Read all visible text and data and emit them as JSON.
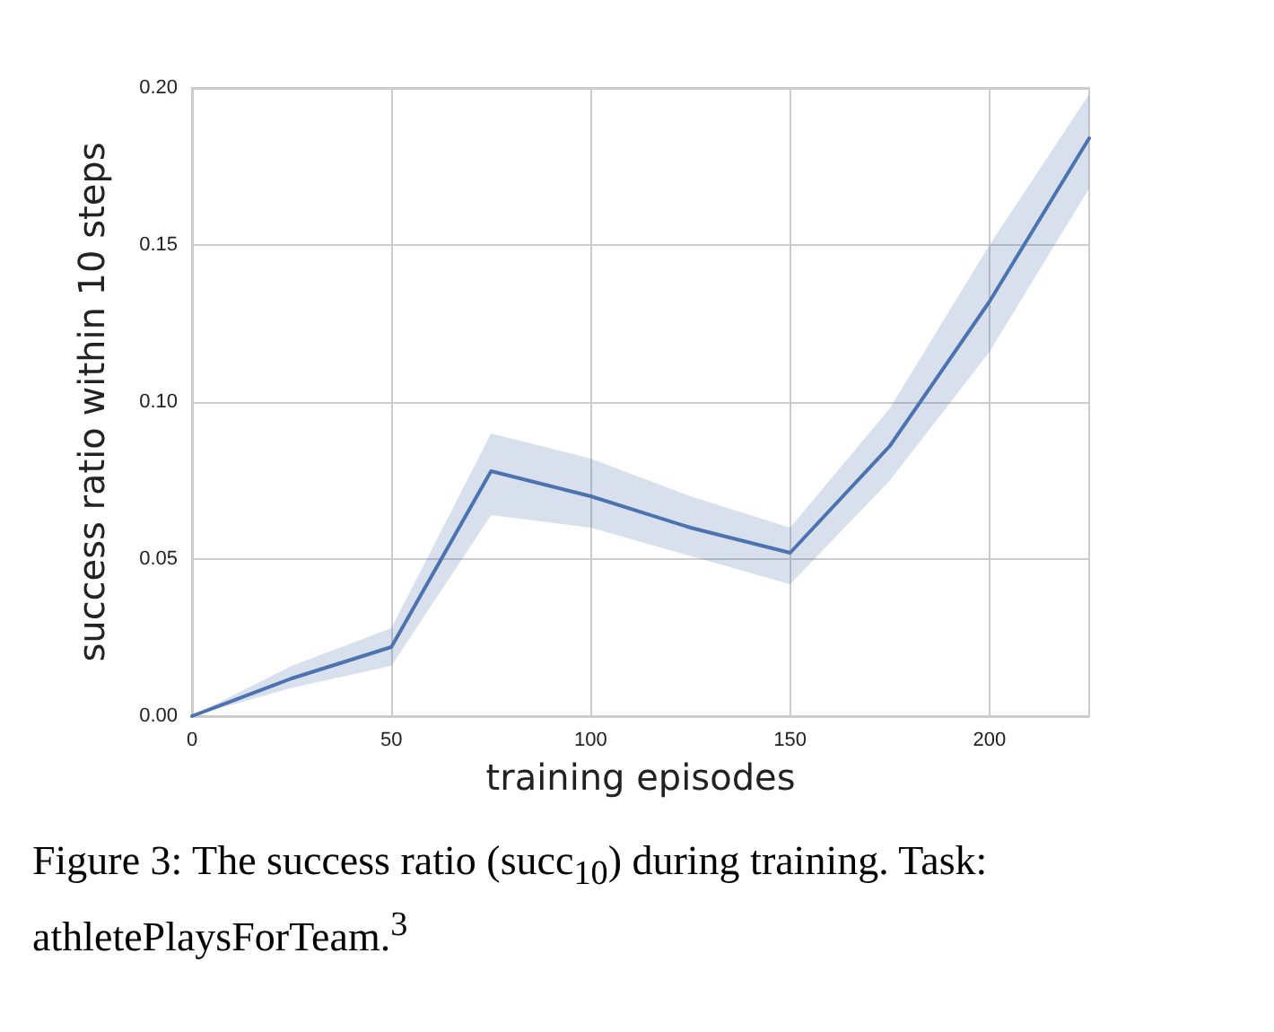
{
  "chart_data": {
    "type": "line",
    "xlabel": "training episodes",
    "ylabel": "success ratio within 10 steps",
    "x": [
      0,
      25,
      50,
      75,
      100,
      125,
      150,
      175,
      200,
      225
    ],
    "series": [
      {
        "color": "#4c72b0",
        "values": [
          0,
          0.012,
          0.022,
          0.078,
          0.07,
          0.06,
          0.052,
          0.086,
          0.132,
          0.184
        ],
        "lower": [
          0,
          0.009,
          0.016,
          0.064,
          0.06,
          0.051,
          0.042,
          0.075,
          0.116,
          0.168
        ],
        "upper": [
          0,
          0.016,
          0.028,
          0.09,
          0.082,
          0.07,
          0.06,
          0.098,
          0.15,
          0.198
        ]
      }
    ],
    "xlim": [
      0,
      225
    ],
    "xticks": [
      0,
      50,
      100,
      150,
      200
    ],
    "ylim": [
      0,
      0.2
    ],
    "yticks": [
      {
        "value": 0,
        "label": "0.00"
      },
      {
        "value": 0.05,
        "label": "0.05"
      },
      {
        "value": 0.1,
        "label": "0.10"
      },
      {
        "value": 0.15,
        "label": "0.15"
      },
      {
        "value": 0.2,
        "label": "0.20"
      }
    ],
    "grid": true,
    "marker": "none",
    "line_style": "solid",
    "annotations": [
      "Figure 3: The success ratio (succ$_{10}$) during training. Task: athletePlaysForTeam.$^{3}$"
    ]
  }
}
